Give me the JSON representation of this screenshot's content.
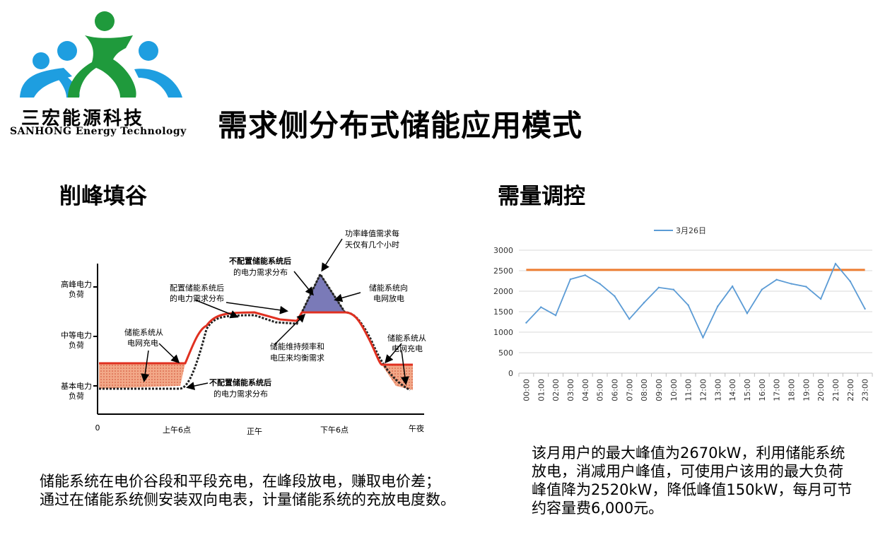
{
  "logo": {
    "name_cn": "三宏能源科技",
    "name_en": "SANHONG Energy Technology",
    "colors": {
      "blue": "#1e9ee0",
      "green": "#1f9a3c"
    }
  },
  "page_title": "需求侧分布式储能应用模式",
  "left": {
    "heading": "削峰填谷",
    "description_line1": "储能系统在电价谷段和平段充电，在峰段放电，赚取电价差；",
    "description_line2": "通过在储能系统侧安装双向电表，计量储能系统的充放电度数。",
    "diagram": {
      "y_levels": [
        "高峰电力\n负荷",
        "中等电力\n负荷",
        "基本电力\n负荷"
      ],
      "x_labels": [
        "0",
        "上午6点",
        "正午",
        "下午6点",
        "午夜"
      ],
      "annotations": {
        "peak_demand": "功率峰值需求每\n天仅有几个小时",
        "no_storage_top": "不配置储能系统后\n的电力需求分布",
        "with_storage": "配置储能系统后\n的电力需求分布",
        "discharge": "储能系统向\n电网放电",
        "charge_left": "储能系统从\n电网充电",
        "frequency": "储能维持频率和\n电压来均衡需求",
        "charge_right": "储能系统从\n电网充电",
        "no_storage_bottom": "不配置储能系统后\n的电力需求分布"
      },
      "colors": {
        "red": "#e03020",
        "fill": "#f2a888",
        "purple": "#7a7ab8"
      }
    }
  },
  "right": {
    "heading": "需量调控",
    "description": "该月用户的最大峰值为2670kW，利用储能系统放电，消减用户峰值，可使用户该用的最大负荷峰值降为2520kW，降低峰值150kW，每月可节约容量费6,000元。",
    "description_lines": [
      "该月用户的最大峰值为2670kW，利用储能系统",
      "放电，消减用户峰值，可使用户该用的最大负荷",
      "峰值降为2520kW，降低峰值150kW，每月可节",
      "约容量费6,000元。"
    ]
  },
  "chart_data": {
    "type": "line",
    "legend": "3月26日",
    "legend_position": "top",
    "categories": [
      "00:00",
      "01:00",
      "02:00",
      "03:00",
      "04:00",
      "05:00",
      "06:00",
      "07:00",
      "08:00",
      "09:00",
      "10:00",
      "11:00",
      "12:00",
      "13:00",
      "14:00",
      "15:00",
      "16:00",
      "17:00",
      "18:00",
      "19:00",
      "20:00",
      "21:00",
      "22:00",
      "23:00"
    ],
    "series": [
      {
        "name": "3月26日",
        "color": "#5b9bd5",
        "values": [
          1230,
          1610,
          1410,
          2290,
          2390,
          2180,
          1880,
          1320,
          1720,
          2090,
          2040,
          1660,
          870,
          1630,
          2120,
          1460,
          2040,
          2280,
          2180,
          2110,
          1810,
          2670,
          2240,
          1570
        ]
      }
    ],
    "reference_line": {
      "value": 2520,
      "color": "#ed7d31"
    },
    "yticks": [
      0,
      500,
      1000,
      1500,
      2000,
      2500,
      3000
    ],
    "ylim": [
      0,
      3000
    ],
    "grid": true
  }
}
